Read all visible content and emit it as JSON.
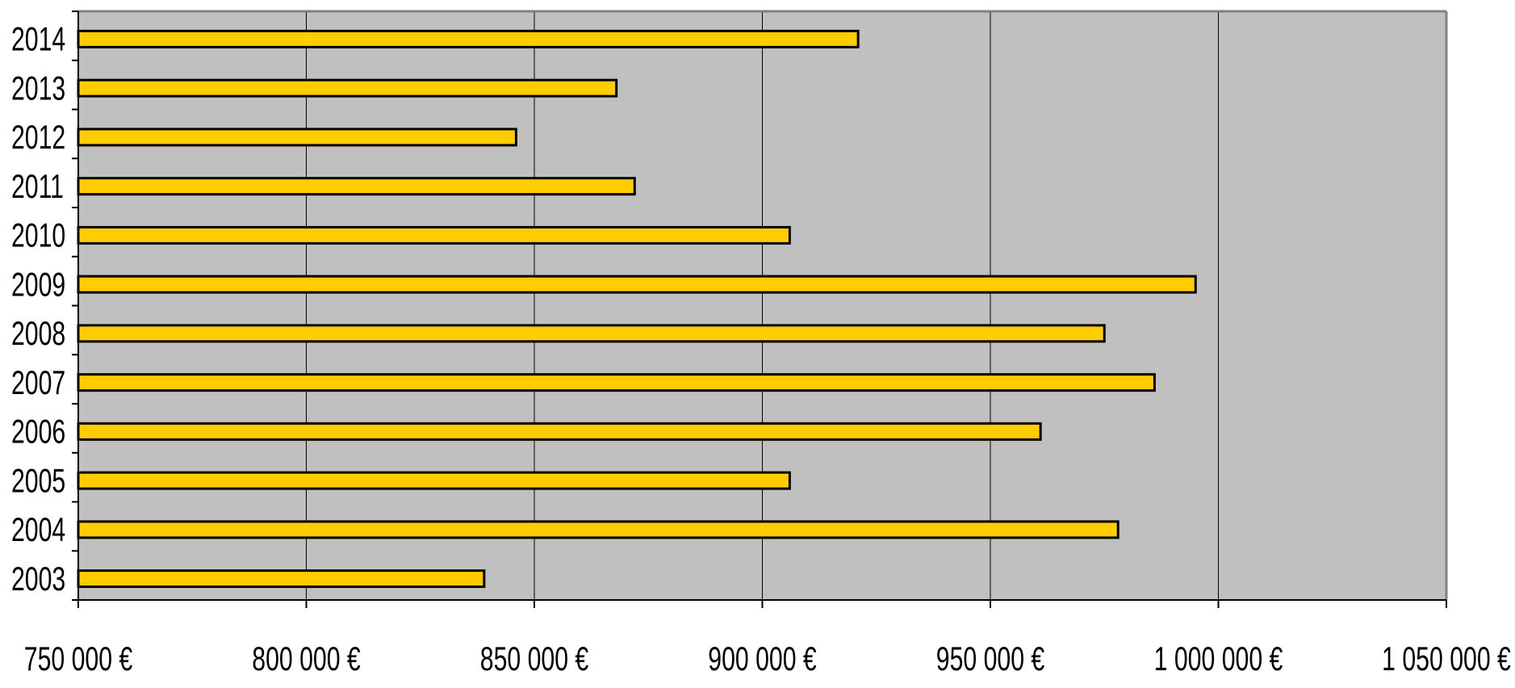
{
  "chart_data": {
    "type": "bar",
    "orientation": "horizontal",
    "categories": [
      "2003",
      "2004",
      "2005",
      "2006",
      "2007",
      "2008",
      "2009",
      "2010",
      "2011",
      "2012",
      "2013",
      "2014"
    ],
    "values": [
      839000,
      978000,
      906000,
      961000,
      986000,
      975000,
      995000,
      906000,
      872000,
      846000,
      868000,
      921000
    ],
    "xlim": [
      750000,
      1050000
    ],
    "xticks": [
      750000,
      800000,
      850000,
      900000,
      950000,
      1000000,
      1050000
    ],
    "xtick_labels": [
      "750 000 €",
      "800 000 €",
      "850 000 €",
      "900 000 €",
      "950 000 €",
      "1 000 000 €",
      "1 050 000 €"
    ],
    "title": "",
    "xlabel": "",
    "ylabel": "",
    "grid": "vertical",
    "legend": "none",
    "colors": {
      "bar": "#FFCC00",
      "bar_stroke": "#000000",
      "plot_bg": "#C0C0C0",
      "grid": "#000000",
      "frame": "#808080"
    }
  }
}
